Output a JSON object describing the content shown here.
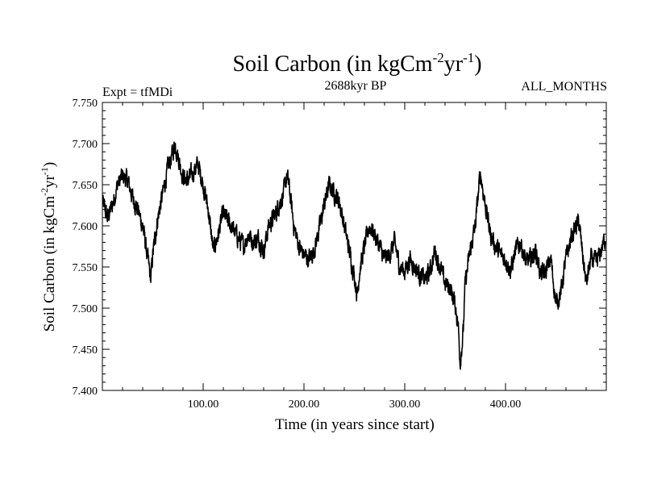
{
  "chart_data": {
    "type": "line",
    "title": "Soil Carbon (in kgCm",
    "title_sup1": "-2",
    "title_mid": "yr",
    "title_sup2": "-1",
    "title_end": ")",
    "left_label": "Expt = tfMDi",
    "center_label": "2688kyr BP",
    "right_label": "ALL_MONTHS",
    "xlabel": "Time (in years since start)",
    "ylabel": "Soil Carbon (in kgCm",
    "ylabel_sup1": "-2",
    "ylabel_mid": "yr",
    "ylabel_sup2": "-1",
    "ylabel_end": ")",
    "xlim": [
      0,
      500
    ],
    "ylim": [
      7.4,
      7.75
    ],
    "xticks": [
      100,
      200,
      300,
      400
    ],
    "xtick_labels": [
      "100.00",
      "200.00",
      "300.00",
      "400.00"
    ],
    "yticks": [
      7.4,
      7.45,
      7.5,
      7.55,
      7.6,
      7.65,
      7.7,
      7.75
    ],
    "ytick_labels": [
      "7.400",
      "7.450",
      "7.500",
      "7.550",
      "7.600",
      "7.650",
      "7.700",
      "7.750"
    ],
    "line_color": "#000000",
    "series": [
      {
        "name": "Soil Carbon",
        "x": [
          0,
          5,
          10,
          15,
          20,
          25,
          30,
          35,
          40,
          45,
          48,
          50,
          55,
          60,
          65,
          70,
          72,
          75,
          80,
          85,
          90,
          95,
          100,
          105,
          110,
          115,
          120,
          125,
          130,
          135,
          140,
          145,
          150,
          155,
          160,
          165,
          170,
          175,
          180,
          183,
          185,
          190,
          195,
          200,
          205,
          210,
          215,
          220,
          225,
          230,
          235,
          240,
          245,
          250,
          253,
          255,
          260,
          265,
          270,
          275,
          280,
          285,
          290,
          295,
          300,
          305,
          310,
          315,
          320,
          325,
          330,
          335,
          340,
          345,
          350,
          353,
          355,
          358,
          360,
          365,
          370,
          375,
          380,
          385,
          390,
          395,
          400,
          405,
          410,
          415,
          420,
          425,
          430,
          435,
          440,
          445,
          450,
          455,
          460,
          465,
          470,
          473,
          475,
          480,
          485,
          490,
          495,
          500
        ],
        "values": [
          7.63,
          7.61,
          7.625,
          7.65,
          7.66,
          7.655,
          7.635,
          7.62,
          7.6,
          7.56,
          7.535,
          7.565,
          7.61,
          7.64,
          7.67,
          7.69,
          7.7,
          7.685,
          7.66,
          7.655,
          7.665,
          7.675,
          7.65,
          7.62,
          7.57,
          7.59,
          7.615,
          7.605,
          7.595,
          7.585,
          7.575,
          7.59,
          7.58,
          7.585,
          7.57,
          7.6,
          7.61,
          7.625,
          7.64,
          7.66,
          7.65,
          7.6,
          7.575,
          7.565,
          7.56,
          7.57,
          7.595,
          7.625,
          7.65,
          7.64,
          7.63,
          7.6,
          7.57,
          7.54,
          7.515,
          7.545,
          7.575,
          7.6,
          7.59,
          7.575,
          7.56,
          7.565,
          7.58,
          7.55,
          7.545,
          7.56,
          7.55,
          7.54,
          7.535,
          7.545,
          7.57,
          7.55,
          7.53,
          7.525,
          7.505,
          7.48,
          7.435,
          7.47,
          7.53,
          7.57,
          7.6,
          7.665,
          7.625,
          7.59,
          7.575,
          7.565,
          7.56,
          7.545,
          7.57,
          7.58,
          7.555,
          7.56,
          7.57,
          7.54,
          7.545,
          7.56,
          7.505,
          7.52,
          7.56,
          7.585,
          7.6,
          7.605,
          7.58,
          7.53,
          7.56,
          7.555,
          7.57,
          7.59
        ]
      }
    ]
  }
}
